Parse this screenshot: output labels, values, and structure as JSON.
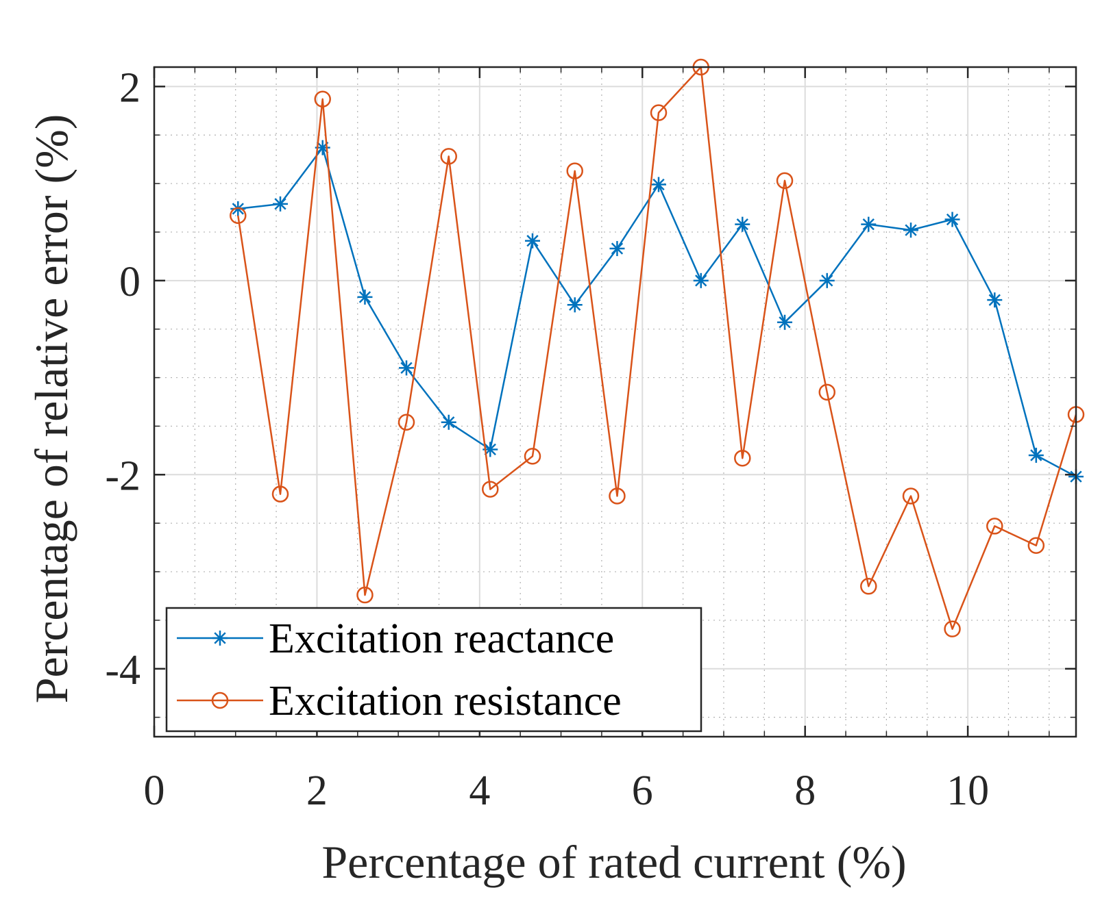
{
  "chart_data": {
    "type": "line",
    "title": "",
    "xlabel": "Percentage of rated current (%)",
    "ylabel": "Percentage of relative error (%)",
    "xlim": [
      0,
      11.33
    ],
    "ylim": [
      -4.7,
      2.2
    ],
    "xticks": [
      0,
      2,
      4,
      6,
      8,
      10
    ],
    "yticks": [
      2,
      0,
      -2,
      -4
    ],
    "xtick_labels": [
      "0",
      "2",
      "4",
      "6",
      "8",
      "10"
    ],
    "ytick_labels": [
      "2",
      "0",
      "-2",
      "-4"
    ],
    "grid": true,
    "minor_grid": true,
    "legend_location": "bottom-left",
    "x": [
      1.03,
      1.55,
      2.07,
      2.59,
      3.1,
      3.62,
      4.13,
      4.65,
      5.17,
      5.69,
      6.2,
      6.72,
      7.23,
      7.75,
      8.27,
      8.78,
      9.3,
      9.81,
      10.33,
      10.84,
      11.33
    ],
    "series": [
      {
        "name": "Excitation reactance",
        "color": "#0072BD",
        "marker": "asterisk",
        "values": [
          0.74,
          0.79,
          1.37,
          -0.17,
          -0.9,
          -1.46,
          -1.74,
          0.41,
          -0.25,
          0.33,
          0.99,
          0.0,
          0.58,
          -0.43,
          0.0,
          0.58,
          0.52,
          0.63,
          -0.2,
          -1.8,
          -2.02
        ]
      },
      {
        "name": "Excitation resistance",
        "color": "#D95319",
        "marker": "circle",
        "values": [
          0.67,
          -2.2,
          1.87,
          -3.24,
          -1.46,
          1.28,
          -2.15,
          -1.81,
          1.13,
          -2.22,
          1.73,
          2.2,
          -1.83,
          1.03,
          -1.15,
          -3.15,
          -2.22,
          -3.59,
          -2.53,
          -2.73,
          -1.38
        ]
      }
    ]
  }
}
